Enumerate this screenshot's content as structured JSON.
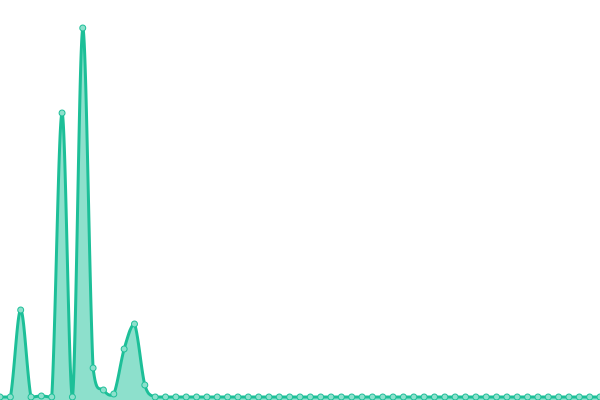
{
  "chart_data": {
    "type": "area",
    "title": "",
    "xlabel": "",
    "ylabel": "",
    "grid": false,
    "axes_visible": false,
    "smooth": true,
    "show_points": true,
    "x": [
      0,
      1,
      2,
      3,
      4,
      5,
      6,
      7,
      8,
      9,
      10,
      11,
      12,
      13,
      14,
      15,
      16,
      17,
      18,
      19,
      20,
      21,
      22,
      23,
      24,
      25,
      26,
      27,
      28,
      29,
      30,
      31,
      32,
      33,
      34,
      35,
      36,
      37,
      38,
      39,
      40,
      41,
      42,
      43,
      44,
      45,
      46,
      47,
      48,
      49,
      50,
      51,
      52,
      53,
      54,
      55,
      56,
      57,
      58
    ],
    "series": [
      {
        "values": [
          0,
          0,
          87,
          0,
          1,
          0,
          284,
          0,
          369,
          29,
          7,
          3,
          48,
          73,
          12,
          0,
          0,
          0,
          0,
          0,
          0,
          0,
          0,
          0,
          0,
          0,
          0,
          0,
          0,
          0,
          0,
          0,
          0,
          0,
          0,
          0,
          0,
          0,
          0,
          0,
          0,
          0,
          0,
          0,
          0,
          0,
          0,
          0,
          0,
          0,
          0,
          0,
          0,
          0,
          0,
          0,
          0,
          0,
          0
        ]
      }
    ],
    "ylim": [
      0,
      397
    ],
    "colors": {
      "line": "#1dbf98",
      "fill": "#8de0cc",
      "point_fill": "#8de0cc"
    }
  }
}
